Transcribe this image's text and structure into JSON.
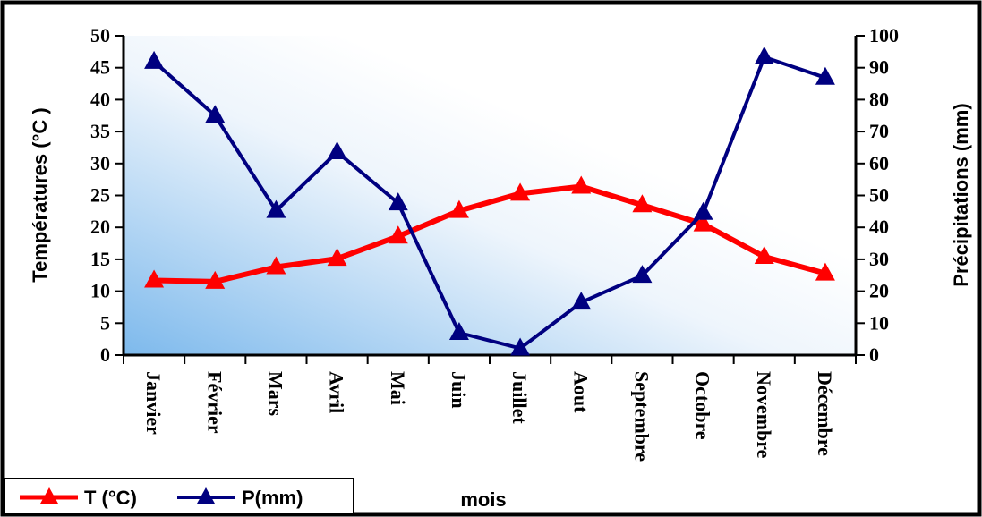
{
  "chart_data": {
    "type": "line",
    "categories": [
      "Janvier",
      "Février",
      "Mars",
      "Avril",
      "Mai",
      "Juin",
      "Juillet",
      "Aout",
      "Septembre",
      "Octobre",
      "Novembre",
      "Décembre"
    ],
    "series": [
      {
        "name": "T (°C)",
        "axis": "left",
        "color": "#ff0000",
        "values": [
          11.7,
          11.5,
          13.8,
          15.1,
          18.6,
          22.6,
          25.3,
          26.4,
          23.5,
          20.5,
          15.4,
          12.8
        ]
      },
      {
        "name": "P(mm)",
        "axis": "right",
        "color": "#000080",
        "values": [
          91.9,
          75.0,
          45.2,
          63.6,
          47.6,
          7.0,
          2.1,
          16.5,
          24.9,
          44.6,
          93.3,
          86.9
        ]
      }
    ],
    "ylabel": "Températures (°C )",
    "y2label": "Précipitations (mm)",
    "xlabel": "mois",
    "ylim": [
      0,
      50
    ],
    "y2lim": [
      0,
      100
    ],
    "yticks": [
      "0",
      "5",
      "10",
      "15",
      "20",
      "25",
      "30",
      "35",
      "40",
      "45",
      "50"
    ],
    "y2ticks": [
      "0",
      "10",
      "20",
      "30",
      "40",
      "50",
      "60",
      "70",
      "80",
      "90",
      "100"
    ],
    "legend_position": "bottom-left",
    "grid": false,
    "plot_background": "gradient light-blue to white"
  }
}
